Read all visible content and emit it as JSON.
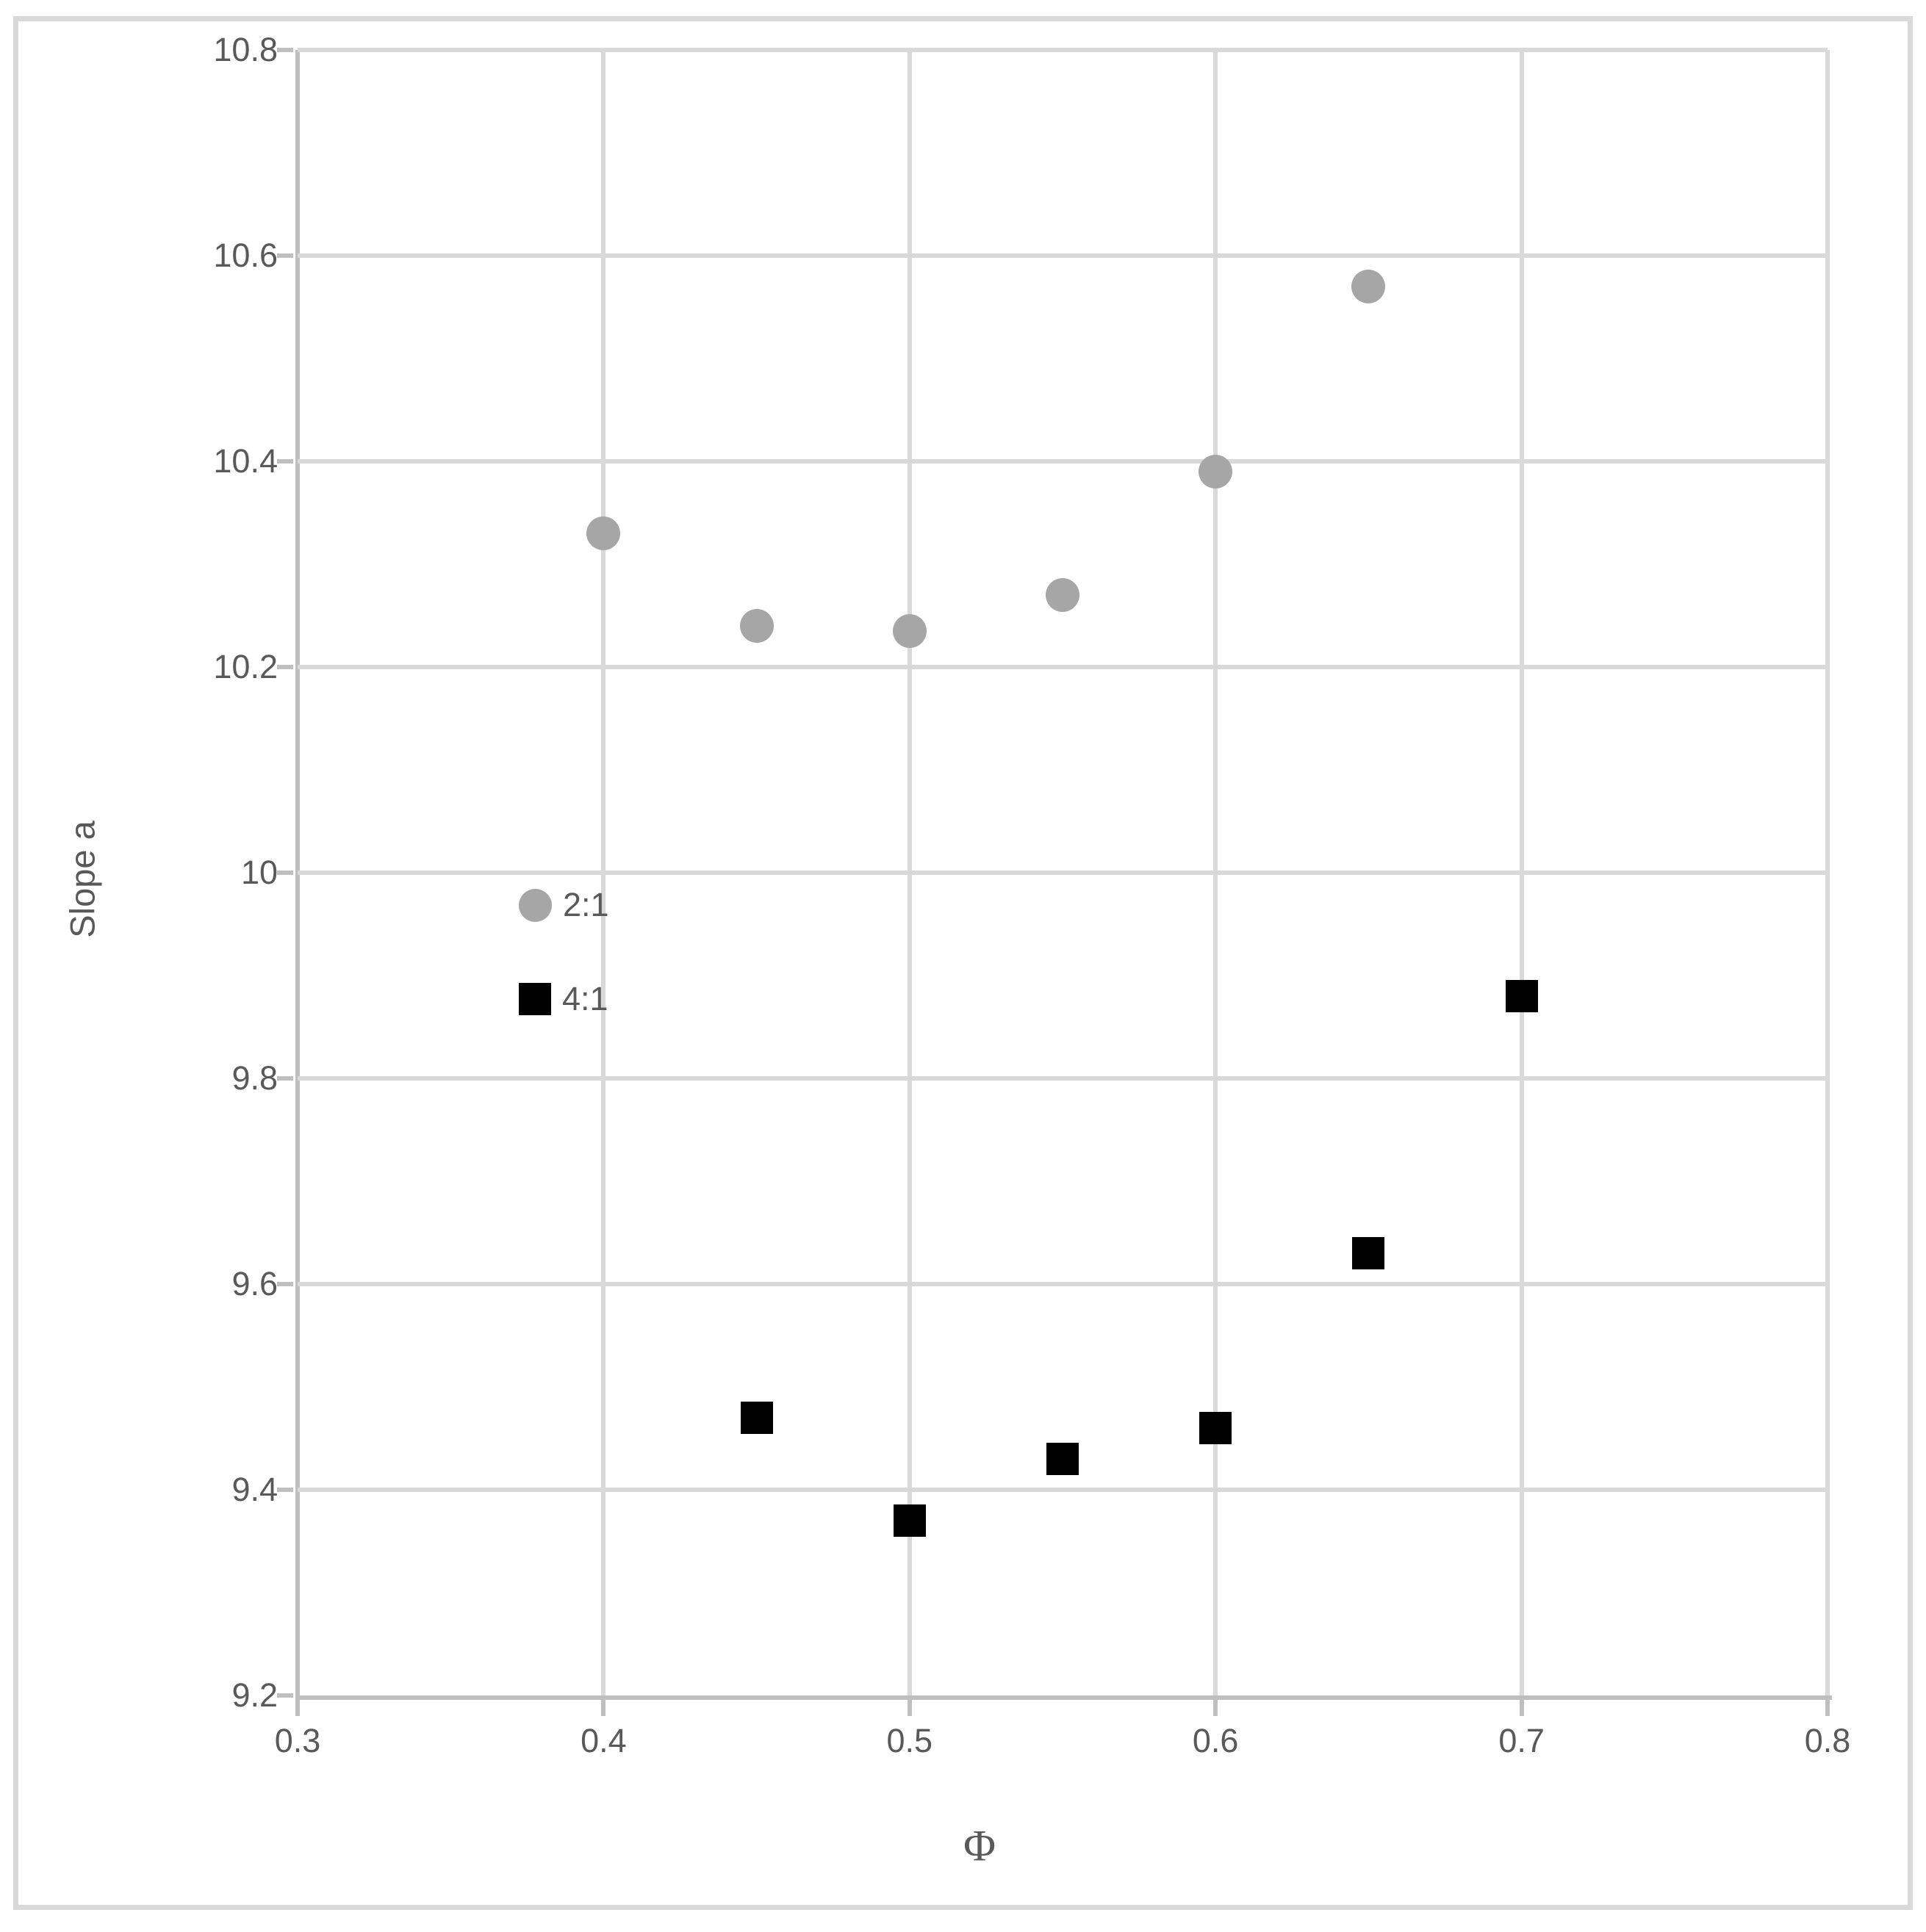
{
  "figure": {
    "background": "#FFFFFF",
    "frame_color": "#D9D9D9",
    "text_color": "#595959",
    "gridline_color": "#D9D9D9",
    "axis_line_color": "#BFBFBF"
  },
  "chart_data": {
    "type": "scatter",
    "title": "",
    "xlabel": "Φ",
    "ylabel": "Slope a",
    "xlim": [
      0.3,
      0.8
    ],
    "ylim": [
      9.2,
      10.8
    ],
    "grid": true,
    "x_ticks": [
      0.3,
      0.4,
      0.5,
      0.6,
      0.7,
      0.8
    ],
    "x_tick_labels": [
      "0.3",
      "0.4",
      "0.5",
      "0.6",
      "0.7",
      "0.8"
    ],
    "y_ticks": [
      10.8,
      10.6,
      10.4,
      10.2,
      10,
      9.8,
      9.6,
      9.4,
      9.2
    ],
    "y_tick_labels": [
      "10.8",
      "10.6",
      "10.4",
      "10.2",
      "10",
      "9.8",
      "9.6",
      "9.4",
      "9.2"
    ],
    "legend_position": "inside-left",
    "series": [
      {
        "name": "2:1",
        "marker": "circle",
        "color": "#A6A6A6",
        "points": [
          [
            0.4,
            10.33
          ],
          [
            0.45,
            10.24
          ],
          [
            0.5,
            10.235
          ],
          [
            0.55,
            10.27
          ],
          [
            0.6,
            10.39
          ],
          [
            0.65,
            10.57
          ]
        ]
      },
      {
        "name": "4:1",
        "marker": "square",
        "color": "#000000",
        "points": [
          [
            0.45,
            9.47
          ],
          [
            0.5,
            9.37
          ],
          [
            0.55,
            9.43
          ],
          [
            0.6,
            9.46
          ],
          [
            0.65,
            9.63
          ],
          [
            0.7,
            9.88
          ]
        ]
      }
    ]
  }
}
